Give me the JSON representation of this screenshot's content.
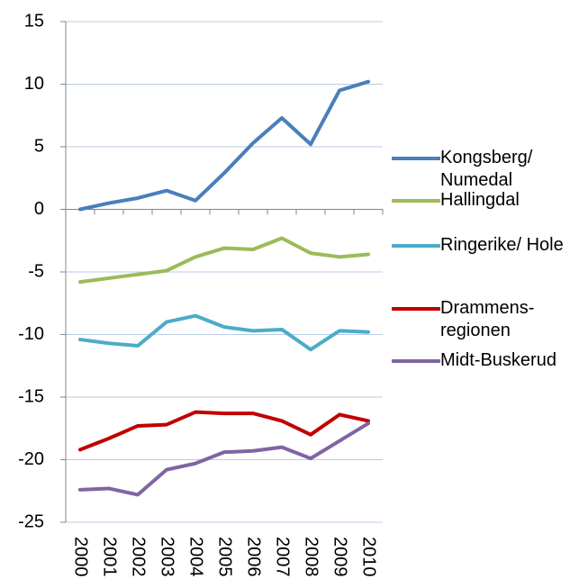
{
  "chart_data": {
    "type": "line",
    "categories": [
      "2000",
      "2001",
      "2002",
      "2003",
      "2004",
      "2005",
      "2006",
      "2007",
      "2008",
      "2009",
      "2010"
    ],
    "series": [
      {
        "name": "Kongsberg/ Numedal",
        "color": "#4a7ebb",
        "values": [
          0,
          0.5,
          0.9,
          1.5,
          0.7,
          2.9,
          5.3,
          7.3,
          5.2,
          9.5,
          10.2
        ]
      },
      {
        "name": "Hallingdal",
        "color": "#9bbb59",
        "values": [
          -5.8,
          -5.5,
          -5.2,
          -4.9,
          -3.8,
          -3.1,
          -3.2,
          -2.3,
          -3.5,
          -3.8,
          -3.6
        ]
      },
      {
        "name": "Ringerike/ Hole",
        "color": "#4bacc6",
        "values": [
          -10.4,
          -10.7,
          -10.9,
          -9.0,
          -8.5,
          -9.4,
          -9.7,
          -9.6,
          -11.2,
          -9.7,
          -9.8
        ]
      },
      {
        "name": "Drammens-regionen",
        "color": "#c00000",
        "values": [
          -19.2,
          -18.3,
          -17.3,
          -17.2,
          -16.2,
          -16.3,
          -16.3,
          -16.9,
          -18.0,
          -16.4,
          -16.9
        ]
      },
      {
        "name": "Midt-Buskerud",
        "color": "#8064a2",
        "values": [
          -22.4,
          -22.3,
          -22.8,
          -20.8,
          -20.3,
          -19.4,
          -19.3,
          -19.0,
          -19.9,
          -18.5,
          -17.1
        ]
      }
    ],
    "ylim": [
      -25,
      15
    ],
    "yticks": [
      -25,
      -20,
      -15,
      -10,
      -5,
      0,
      5,
      10,
      15
    ],
    "grid": true
  }
}
